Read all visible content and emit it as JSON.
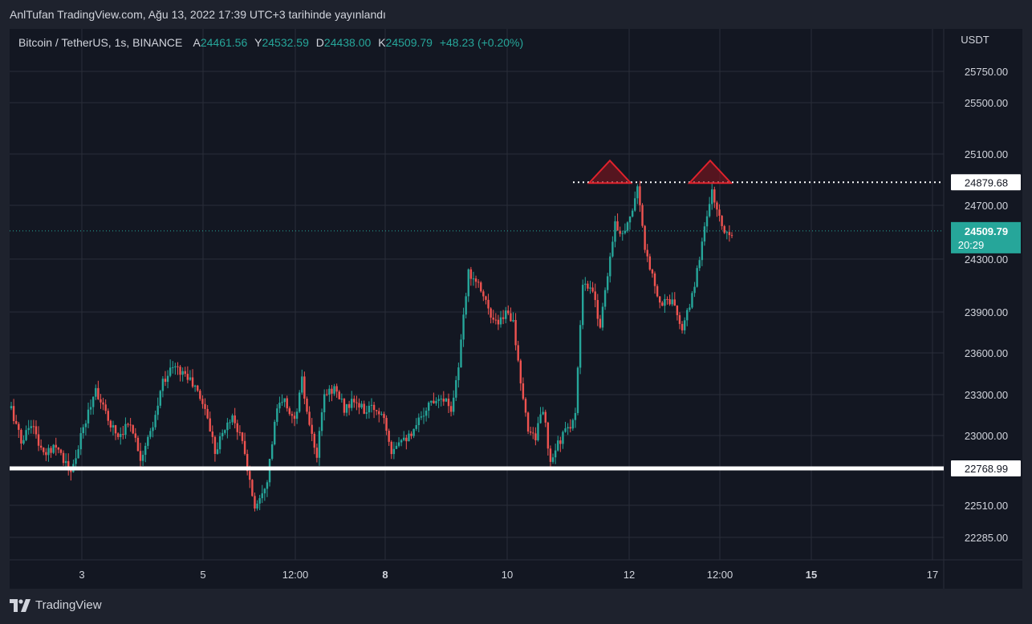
{
  "header": {
    "text": "AnlTufan TradingView.com, Ağu 13, 2022 17:39 UTC+3 tarihinde yayınlandı"
  },
  "legend": {
    "symbol": "Bitcoin / TetherUS, 1s, BINANCE",
    "open_label": "A",
    "open": "24461.56",
    "high_label": "Y",
    "high": "24532.59",
    "low_label": "D",
    "low": "24438.00",
    "close_label": "K",
    "close": "24509.79",
    "change": "+48.23 (+0.20%)"
  },
  "footer": {
    "brand": "TradingView"
  },
  "colors": {
    "up": "#26a69a",
    "down": "#ef5350",
    "background": "#131722",
    "grid": "#2a2e39"
  },
  "chart_data": {
    "type": "candlestick",
    "currency_label": "USDT",
    "y_ticks": [
      25750,
      25500,
      25100,
      24700,
      24300,
      23900,
      23600,
      23300,
      23000,
      22510,
      22285
    ],
    "y_tick_labels": [
      "25750.00",
      "25500.00",
      "25100.00",
      "24700.00",
      "24300.00",
      "23900.00",
      "23600.00",
      "23300.00",
      "23000.00",
      "22510.00",
      "22285.00"
    ],
    "x_ticks": [
      {
        "label": "3",
        "bold": false
      },
      {
        "label": "5",
        "bold": false
      },
      {
        "label": "12:00",
        "bold": false
      },
      {
        "label": "8",
        "bold": true
      },
      {
        "label": "10",
        "bold": false
      },
      {
        "label": "12",
        "bold": false
      },
      {
        "label": "12:00",
        "bold": false
      },
      {
        "label": "15",
        "bold": true
      },
      {
        "label": "17",
        "bold": false
      }
    ],
    "price_path": [
      [
        0,
        23200
      ],
      [
        4,
        22950
      ],
      [
        8,
        23100
      ],
      [
        13,
        22850
      ],
      [
        18,
        22950
      ],
      [
        24,
        22720
      ],
      [
        29,
        23050
      ],
      [
        34,
        23350
      ],
      [
        38,
        23150
      ],
      [
        43,
        23000
      ],
      [
        48,
        23100
      ],
      [
        52,
        22850
      ],
      [
        57,
        23050
      ],
      [
        61,
        23400
      ],
      [
        65,
        23500
      ],
      [
        70,
        23450
      ],
      [
        74,
        23350
      ],
      [
        78,
        23200
      ],
      [
        82,
        22900
      ],
      [
        86,
        23050
      ],
      [
        89,
        23150
      ],
      [
        93,
        22950
      ],
      [
        96,
        22680
      ],
      [
        98,
        22500
      ],
      [
        103,
        22700
      ],
      [
        107,
        23200
      ],
      [
        110,
        23250
      ],
      [
        114,
        23100
      ],
      [
        117,
        23400
      ],
      [
        120,
        23050
      ],
      [
        123,
        22850
      ],
      [
        126,
        23300
      ],
      [
        130,
        23350
      ],
      [
        134,
        23200
      ],
      [
        138,
        23250
      ],
      [
        142,
        23180
      ],
      [
        146,
        23200
      ],
      [
        150,
        23150
      ],
      [
        153,
        22900
      ],
      [
        157,
        23000
      ],
      [
        161,
        22980
      ],
      [
        165,
        23150
      ],
      [
        169,
        23250
      ],
      [
        173,
        23300
      ],
      [
        177,
        23200
      ],
      [
        180,
        23500
      ],
      [
        184,
        24200
      ],
      [
        187,
        24150
      ],
      [
        190,
        24050
      ],
      [
        193,
        23850
      ],
      [
        196,
        23800
      ],
      [
        199,
        23900
      ],
      [
        202,
        23850
      ],
      [
        205,
        23350
      ],
      [
        208,
        23050
      ],
      [
        211,
        23000
      ],
      [
        214,
        23200
      ],
      [
        217,
        22780
      ],
      [
        220,
        22950
      ],
      [
        224,
        23050
      ],
      [
        227,
        23150
      ],
      [
        230,
        24100
      ],
      [
        234,
        24050
      ],
      [
        237,
        23800
      ],
      [
        240,
        24200
      ],
      [
        243,
        24550
      ],
      [
        246,
        24500
      ],
      [
        249,
        24600
      ],
      [
        252,
        24850
      ],
      [
        255,
        24350
      ],
      [
        258,
        24200
      ],
      [
        261,
        23950
      ],
      [
        264,
        24000
      ],
      [
        267,
        23950
      ],
      [
        270,
        23750
      ],
      [
        273,
        23950
      ],
      [
        276,
        24200
      ],
      [
        279,
        24550
      ],
      [
        282,
        24800
      ],
      [
        285,
        24600
      ],
      [
        287,
        24500
      ],
      [
        290,
        24509.79
      ]
    ],
    "annotations": {
      "resistance_level": 24879.68,
      "resistance_label": "24879.68",
      "support_level": 22768.99,
      "support_label": "22768.99",
      "last_price": 24509.79,
      "last_price_label": "24509.79",
      "countdown_label": "20:29",
      "marked_peaks": [
        24879.68,
        24879.68
      ]
    }
  }
}
